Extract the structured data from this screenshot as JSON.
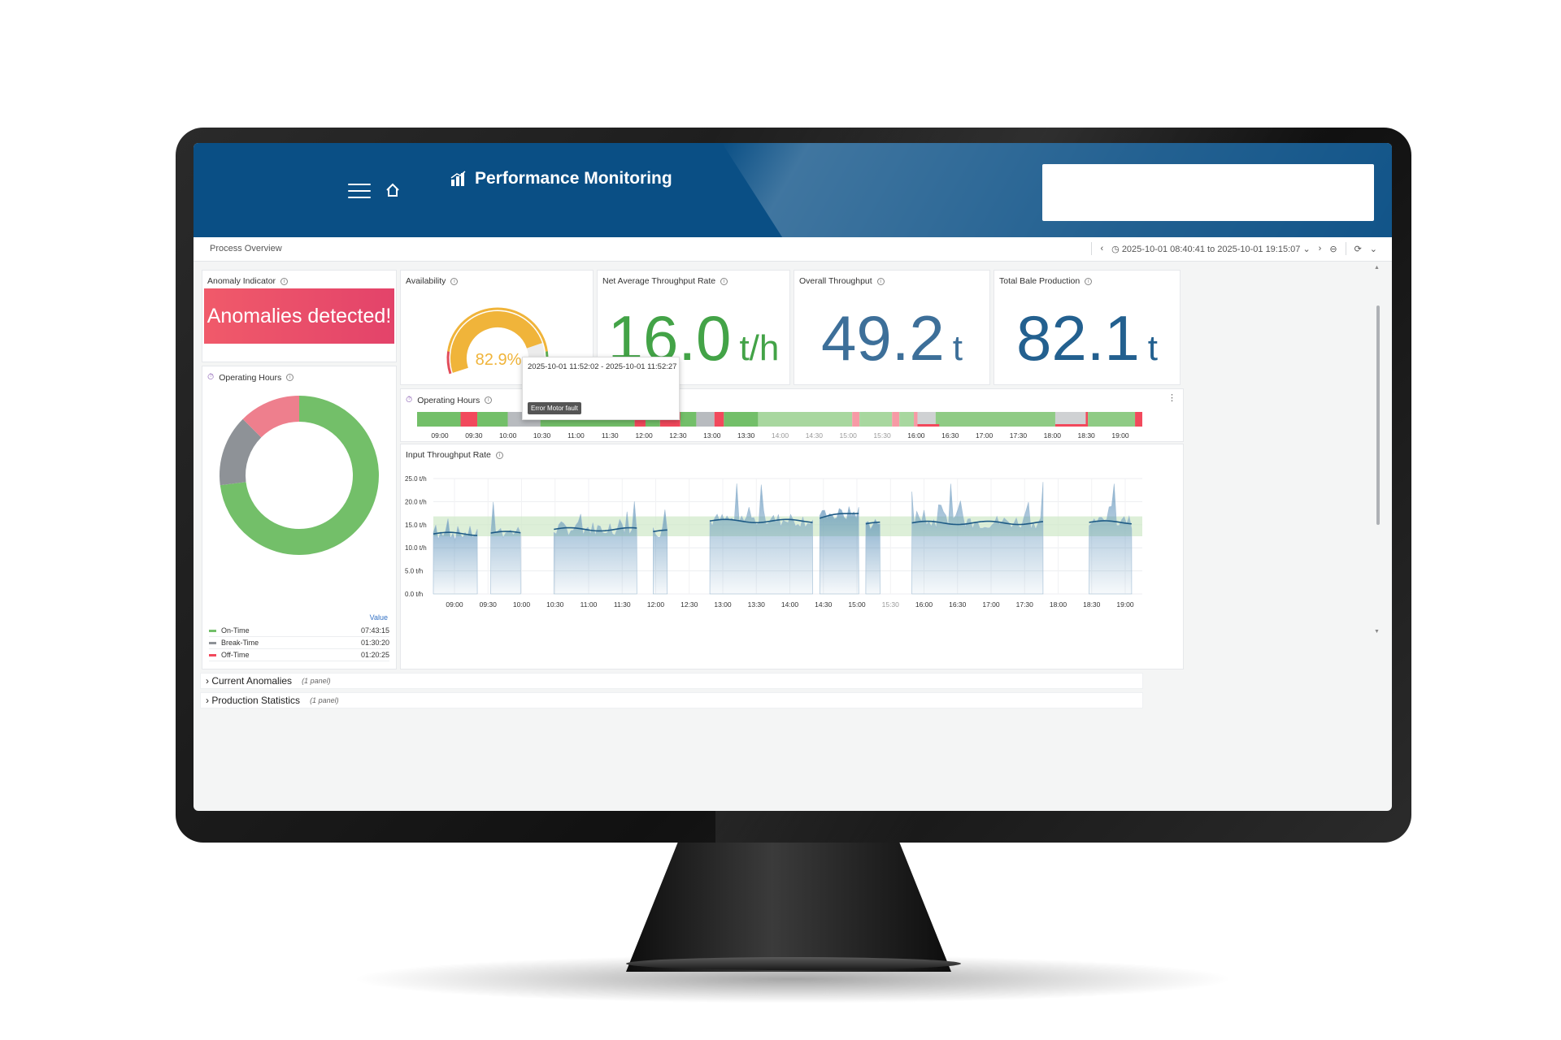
{
  "header": {
    "title": "Performance Monitoring",
    "search_value": ""
  },
  "subbar": {
    "breadcrumb": "Process Overview",
    "time_range": "2025-10-01 08:40:41 to 2025-10-01 19:15:07"
  },
  "panels": {
    "anomaly": {
      "title": "Anomaly Indicator",
      "message": "Anomalies detected!"
    },
    "availability": {
      "title": "Availability",
      "value": 82.9,
      "value_text": "82.9%"
    },
    "net_rate": {
      "title": "Net Average Throughput Rate",
      "value": "16.0",
      "unit": "t/h"
    },
    "overall": {
      "title": "Overall Throughput",
      "value": "49.2",
      "unit": "t"
    },
    "bale": {
      "title": "Total Bale Production",
      "value": "82.1",
      "unit": "t"
    },
    "hours_donut": {
      "title": "Operating Hours",
      "legend_header": "Value",
      "items": [
        {
          "label": "On-Time",
          "value": "07:43:15",
          "color": "#73bf69",
          "fraction": 0.73
        },
        {
          "label": "Break-Time",
          "value": "01:30:20",
          "color": "#8e9297",
          "fraction": 0.145
        },
        {
          "label": "Off-Time",
          "value": "01:20:25",
          "color": "#f2495c",
          "fraction": 0.125
        }
      ]
    },
    "hours_timeline": {
      "title": "Operating Hours",
      "ticks": [
        "09:00",
        "09:30",
        "10:00",
        "10:30",
        "11:00",
        "11:30",
        "12:00",
        "12:30",
        "13:00",
        "13:30",
        "14:00",
        "14:30",
        "15:00",
        "15:30",
        "16:00",
        "16:30",
        "17:00",
        "17:30",
        "18:00",
        "18:30",
        "19:00"
      ]
    },
    "throughput": {
      "title": "Input Throughput Rate",
      "y_ticks": [
        "25.0 t/h",
        "20.0 t/h",
        "15.0 t/h",
        "10.0 t/h",
        "5.0 t/h",
        "0.0 t/h"
      ],
      "x_ticks": [
        "09:00",
        "09:30",
        "10:00",
        "10:30",
        "11:00",
        "11:30",
        "12:00",
        "12:30",
        "13:00",
        "13:30",
        "14:00",
        "14:30",
        "15:00",
        "15:30",
        "16:00",
        "16:30",
        "17:00",
        "17:30",
        "18:00",
        "18:30",
        "19:00"
      ]
    }
  },
  "tooltip": {
    "range": "2025-10-01 11:52:02 - 2025-10-01 11:52:27",
    "badge": "Error Motor fault"
  },
  "rows": [
    {
      "label": "Current Anomalies",
      "sub": "(1 panel)"
    },
    {
      "label": "Production Statistics",
      "sub": "(1 panel)"
    }
  ],
  "colors": {
    "header": "#0a4f85",
    "green": "#5fae52",
    "blue": "#2f6f9e",
    "orange": "#f0b43a",
    "red": "#f2495c",
    "gray": "#b8bbbf"
  }
}
